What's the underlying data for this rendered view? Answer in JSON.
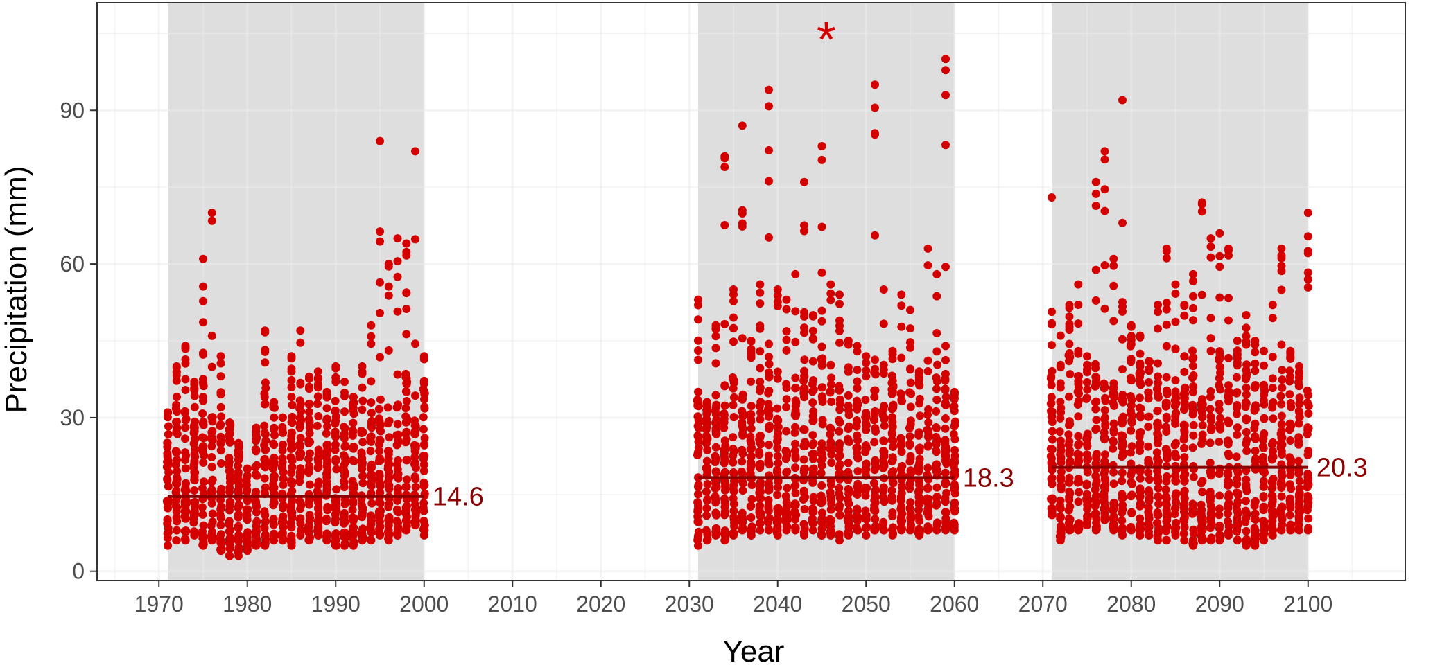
{
  "chart_data": {
    "type": "scatter",
    "xlabel": "Year",
    "ylabel": "Precipitation (mm)",
    "xlim": [
      1963,
      2111
    ],
    "ylim": [
      -1.8,
      111
    ],
    "x_ticks": [
      1970,
      1980,
      1990,
      2000,
      2010,
      2020,
      2030,
      2040,
      2050,
      2060,
      2070,
      2080,
      2090,
      2100
    ],
    "x_tick_labels": [
      "1970",
      "1980",
      "1990",
      "2000",
      "2010",
      "2020",
      "2030",
      "2040",
      "2050",
      "2060",
      "2070",
      "2080",
      "2090",
      "2100"
    ],
    "y_ticks": [
      0,
      30,
      60,
      90
    ],
    "y_tick_labels": [
      "0",
      "30",
      "60",
      "90"
    ],
    "grid": true,
    "colors": {
      "points": "#d40000",
      "mean_line": "#8b0000",
      "shade": "#dedede",
      "grid": "#ebebeb"
    },
    "periods": [
      {
        "start": 1971,
        "end": 2000,
        "mean": 14.6,
        "mean_label": "14.6",
        "significance": ""
      },
      {
        "start": 2031,
        "end": 2060,
        "mean": 18.3,
        "mean_label": "18.3",
        "significance": "*"
      },
      {
        "start": 2071,
        "end": 2100,
        "mean": 20.3,
        "mean_label": "20.3",
        "significance": ""
      }
    ],
    "yearly_max": {
      "1971": 31,
      "1972": 40,
      "1973": 44,
      "1974": 37,
      "1975": 61,
      "1976": 70,
      "1977": 42,
      "1978": 29,
      "1979": 25,
      "1980": 20,
      "1981": 28,
      "1982": 47,
      "1983": 33,
      "1984": 30,
      "1985": 42,
      "1986": 47,
      "1987": 38,
      "1988": 39,
      "1989": 35,
      "1990": 40,
      "1991": 37,
      "1992": 34,
      "1993": 40,
      "1994": 48,
      "1995": 84,
      "1996": 60,
      "1997": 65,
      "1998": 64,
      "1999": 82,
      "2000": 42,
      "2031": 53,
      "2032": 33,
      "2033": 48,
      "2034": 81,
      "2035": 55,
      "2036": 87,
      "2037": 45,
      "2038": 56,
      "2039": 94,
      "2040": 55,
      "2041": 53,
      "2042": 58,
      "2043": 76,
      "2044": 50,
      "2045": 83,
      "2046": 56,
      "2047": 54,
      "2048": 45,
      "2049": 44,
      "2050": 42,
      "2051": 95,
      "2052": 55,
      "2053": 43,
      "2054": 54,
      "2055": 51,
      "2056": 39,
      "2057": 63,
      "2058": 58,
      "2059": 100,
      "2060": 35,
      "2071": 73,
      "2072": 46,
      "2073": 52,
      "2074": 56,
      "2075": 42,
      "2076": 76,
      "2077": 82,
      "2078": 61,
      "2079": 92,
      "2080": 48,
      "2081": 46,
      "2082": 41,
      "2083": 52,
      "2084": 63,
      "2085": 56,
      "2086": 52,
      "2087": 58,
      "2088": 72,
      "2089": 65,
      "2090": 66,
      "2091": 63,
      "2092": 45,
      "2093": 50,
      "2094": 45,
      "2095": 43,
      "2096": 52,
      "2097": 63,
      "2098": 43,
      "2099": 40,
      "2100": 70
    },
    "yearly_min": {
      "1971": 5,
      "1972": 6,
      "1973": 6,
      "1974": 7,
      "1975": 5,
      "1976": 6,
      "1977": 4,
      "1978": 3,
      "1979": 3,
      "1980": 4,
      "1981": 5,
      "1982": 5,
      "1983": 6,
      "1984": 6,
      "1985": 5,
      "1986": 7,
      "1987": 6,
      "1988": 7,
      "1989": 6,
      "1990": 5,
      "1991": 5,
      "1992": 5,
      "1993": 6,
      "1994": 6,
      "1995": 7,
      "1996": 6,
      "1997": 7,
      "1998": 8,
      "1999": 9,
      "2000": 7,
      "2031": 5,
      "2032": 6,
      "2033": 7,
      "2034": 6,
      "2035": 7,
      "2036": 8,
      "2037": 7,
      "2038": 8,
      "2039": 8,
      "2040": 7,
      "2041": 8,
      "2042": 8,
      "2043": 7,
      "2044": 8,
      "2045": 7,
      "2046": 7,
      "2047": 6,
      "2048": 7,
      "2049": 8,
      "2050": 7,
      "2051": 8,
      "2052": 8,
      "2053": 7,
      "2054": 8,
      "2055": 8,
      "2056": 7,
      "2057": 8,
      "2058": 8,
      "2059": 8,
      "2060": 8,
      "2071": 11,
      "2072": 6,
      "2073": 8,
      "2074": 8,
      "2075": 9,
      "2076": 8,
      "2077": 10,
      "2078": 8,
      "2079": 7,
      "2080": 8,
      "2081": 7,
      "2082": 7,
      "2083": 6,
      "2084": 6,
      "2085": 7,
      "2086": 6,
      "2087": 5,
      "2088": 6,
      "2089": 6,
      "2090": 6,
      "2091": 7,
      "2092": 6,
      "2093": 5,
      "2094": 5,
      "2095": 6,
      "2096": 7,
      "2097": 8,
      "2098": 8,
      "2099": 8,
      "2100": 8
    }
  }
}
